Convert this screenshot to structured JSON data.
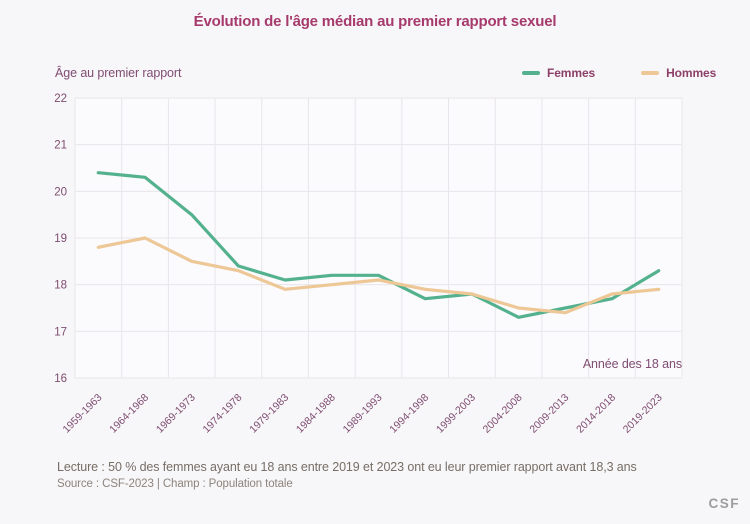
{
  "title": "Évolution de l'âge médian au premier rapport sexuel",
  "y_axis_title": "Âge au premier rapport",
  "x_axis_note": "Année des 18 ans",
  "legend": [
    {
      "label": "Femmes",
      "color": "#53b18e"
    },
    {
      "label": "Hommes",
      "color": "#edc795"
    }
  ],
  "footer": {
    "lecture": "Lecture : 50 % des femmes ayant eu 18 ans entre 2019 et 2023 ont eu leur premier rapport avant 18,3 ans",
    "source": "Source : CSF-2023  |  Champ : Population totale"
  },
  "logo": "CSF",
  "colors": {
    "title": "#a63a6d",
    "axis_text": "#7f4d72",
    "grid": "#e8e6ea",
    "plot_background": "#fbfafc",
    "page_background": "#f7f6f8",
    "femmes": "#53b18e",
    "hommes": "#edc795"
  },
  "chart_data": {
    "type": "line",
    "title": "Évolution de l'âge médian au premier rapport sexuel",
    "ylabel": "Âge au premier rapport",
    "xlabel": "Année des 18 ans",
    "categories": [
      "1959-1963",
      "1964-1968",
      "1969-1973",
      "1974-1978",
      "1979-1983",
      "1984-1988",
      "1989-1993",
      "1994-1998",
      "1999-2003",
      "2004-2008",
      "2009-2013",
      "2014-2018",
      "2019-2023"
    ],
    "series": [
      {
        "name": "Femmes",
        "color": "#53b18e",
        "values": [
          20.4,
          20.3,
          19.5,
          18.4,
          18.1,
          18.2,
          18.2,
          17.7,
          17.8,
          17.3,
          17.5,
          17.7,
          18.3
        ]
      },
      {
        "name": "Hommes",
        "color": "#edc795",
        "values": [
          18.8,
          19.0,
          18.5,
          18.3,
          17.9,
          18.0,
          18.1,
          17.9,
          17.8,
          17.5,
          17.4,
          17.8,
          17.9
        ]
      }
    ],
    "ylim": [
      16,
      22
    ],
    "yticks": [
      22,
      21,
      20,
      19,
      18,
      17,
      16
    ],
    "grid": true,
    "legend_position": "top-right"
  }
}
